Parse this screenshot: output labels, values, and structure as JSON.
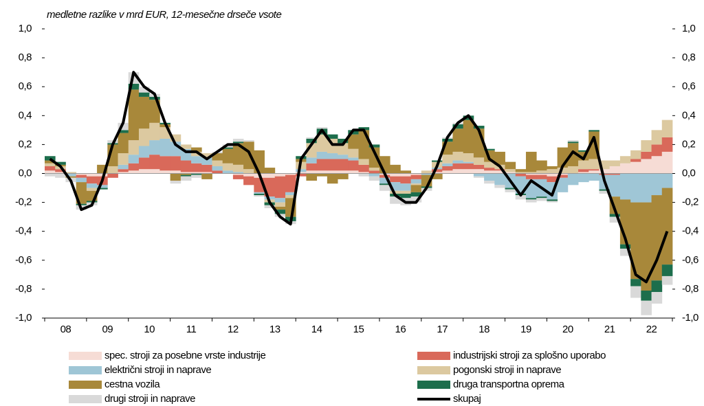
{
  "chart_data": {
    "type": "stacked_bar_line",
    "subtitle": "medletne razlike v mrd EUR, 12-mesečne drseče vsote",
    "categories": [
      null,
      "08",
      null,
      null,
      null,
      "09",
      null,
      null,
      null,
      "10",
      null,
      null,
      null,
      "11",
      null,
      null,
      null,
      "12",
      null,
      null,
      null,
      "13",
      null,
      null,
      null,
      "14",
      null,
      null,
      null,
      "15",
      null,
      null,
      null,
      "16",
      null,
      null,
      null,
      "17",
      null,
      null,
      null,
      "18",
      null,
      null,
      null,
      "19",
      null,
      null,
      null,
      "20",
      null,
      null,
      null,
      "21",
      null,
      null,
      null,
      "22",
      null,
      null
    ],
    "series": [
      {
        "name": "spec. stroji za posebne vrste industrije",
        "color": "#f6dcd5",
        "values": [
          0.02,
          0.01,
          0,
          -0.01,
          -0.02,
          -0.02,
          0,
          0.01,
          0.02,
          0.03,
          0.03,
          0.02,
          0.02,
          0.01,
          0.01,
          0.01,
          0,
          0,
          -0.01,
          -0.02,
          -0.03,
          -0.03,
          -0.02,
          -0.01,
          0.01,
          0.02,
          0.02,
          0.02,
          0.02,
          0.02,
          0.01,
          0,
          -0.01,
          -0.02,
          -0.02,
          -0.01,
          0,
          0.01,
          0.02,
          0.03,
          0.03,
          0.03,
          0.02,
          0.02,
          0.01,
          0,
          -0.01,
          -0.01,
          -0.02,
          -0.01,
          0,
          0.01,
          0.02,
          0.03,
          0.05,
          0.07,
          0.08,
          0.1,
          0.12,
          0.15
        ]
      },
      {
        "name": "industrijski stroji za splošno uporabo",
        "color": "#d9695a",
        "values": [
          0.03,
          0.02,
          0,
          -0.02,
          -0.05,
          -0.06,
          -0.03,
          0.02,
          0.05,
          0.08,
          0.1,
          0.1,
          0.1,
          0.08,
          0.06,
          0.05,
          0.02,
          0,
          -0.03,
          -0.06,
          -0.1,
          -0.13,
          -0.15,
          -0.12,
          -0.02,
          0.05,
          0.08,
          0.08,
          0.08,
          0.07,
          0.05,
          0.02,
          -0.02,
          -0.04,
          -0.05,
          -0.03,
          0,
          0.02,
          0.03,
          0.04,
          0.04,
          0.03,
          0.02,
          0.01,
          0,
          -0.02,
          -0.03,
          -0.03,
          -0.04,
          -0.02,
          0,
          0.02,
          0.01,
          -0.01,
          -0.01,
          0,
          0.02,
          0.05,
          0.08,
          0.1
        ]
      },
      {
        "name": "električni stroji in naprave",
        "color": "#9fc6d6",
        "values": [
          0,
          0,
          -0.02,
          -0.03,
          -0.03,
          -0.02,
          0,
          0.03,
          0.06,
          0.08,
          0.1,
          0.12,
          0.1,
          0.08,
          0.05,
          0.05,
          0.03,
          0.02,
          0.01,
          0,
          -0.01,
          -0.02,
          -0.03,
          -0.02,
          0.02,
          0.04,
          0.05,
          0.04,
          0.03,
          0.02,
          0,
          -0.02,
          -0.04,
          -0.06,
          -0.05,
          -0.03,
          -0.01,
          0.01,
          0.02,
          0.02,
          0.01,
          -0.02,
          -0.05,
          -0.08,
          -0.1,
          -0.12,
          -0.13,
          -0.12,
          -0.12,
          -0.1,
          -0.08,
          -0.06,
          -0.05,
          -0.1,
          -0.15,
          -0.18,
          -0.2,
          -0.2,
          -0.15,
          -0.1
        ]
      },
      {
        "name": "pogonski stroji in naprave",
        "color": "#dcc9a0",
        "values": [
          0.02,
          0.02,
          0.01,
          0,
          -0.02,
          0,
          0.05,
          0.08,
          0.1,
          0.12,
          0.12,
          0.08,
          0.05,
          0.03,
          0.03,
          0.03,
          0.04,
          0.05,
          0.05,
          0.03,
          0,
          -0.02,
          -0.03,
          -0.02,
          0.05,
          0.1,
          0.12,
          0.1,
          0.08,
          0.06,
          0.04,
          0.02,
          0,
          -0.02,
          -0.02,
          -0.01,
          0.02,
          0.04,
          0.06,
          0.06,
          0.06,
          0.05,
          0.04,
          0.03,
          0.02,
          0.01,
          0.01,
          0.02,
          0.03,
          0.04,
          0.05,
          0.06,
          0.07,
          0.06,
          0.04,
          0.05,
          0.06,
          0.08,
          0.1,
          0.12
        ]
      },
      {
        "name": "cestna vozila",
        "color": "#a8883a",
        "values": [
          0.02,
          0.01,
          -0.01,
          -0.15,
          -0.07,
          0.06,
          0.15,
          0.14,
          0.35,
          0.22,
          0.16,
          0.02,
          -0.05,
          -0.01,
          0.03,
          -0.04,
          0.05,
          0.1,
          0.15,
          0.19,
          0.16,
          0.04,
          -0.02,
          -0.13,
          0.02,
          -0.05,
          -0.02,
          -0.07,
          -0.04,
          0.1,
          0.2,
          0.14,
          0.12,
          0.06,
          0.02,
          -0.05,
          -0.08,
          -0.04,
          0.09,
          0.16,
          0.23,
          0.2,
          0.08,
          0.09,
          0.05,
          0.02,
          0.14,
          0.07,
          0.02,
          0.14,
          0.16,
          0.06,
          0.19,
          0,
          -0.12,
          -0.31,
          -0.53,
          -0.61,
          -0.59,
          -0.53
        ]
      },
      {
        "name": "druga transportna oprema",
        "color": "#1d6e4c",
        "values": [
          0.03,
          0.02,
          0,
          -0.01,
          -0.01,
          -0.01,
          0.01,
          0.02,
          0.04,
          0.03,
          0.02,
          0.01,
          0,
          -0.01,
          -0.01,
          0,
          0,
          0.01,
          0.01,
          0,
          -0.01,
          -0.02,
          -0.03,
          -0.03,
          0.02,
          0.03,
          0.04,
          0.03,
          0.03,
          0.03,
          0.02,
          0.02,
          -0.01,
          -0.02,
          -0.03,
          -0.03,
          -0.01,
          0.01,
          0.02,
          0.03,
          0.03,
          0.02,
          0.01,
          0,
          -0.01,
          -0.01,
          -0.01,
          -0.01,
          -0.01,
          0,
          0.01,
          0.01,
          0.01,
          -0.01,
          -0.02,
          -0.03,
          -0.05,
          -0.07,
          -0.08,
          -0.08
        ]
      },
      {
        "name": "drugi stroji in naprave",
        "color": "#d9d9d9",
        "values": [
          -0.02,
          -0.03,
          -0.03,
          -0.03,
          -0.02,
          0,
          0.02,
          0.05,
          0.08,
          0.04,
          0.02,
          0,
          -0.02,
          -0.03,
          -0.02,
          0,
          0.01,
          0.02,
          0.02,
          0.01,
          -0.01,
          -0.02,
          -0.02,
          -0.02,
          0,
          0.01,
          0.01,
          0,
          0,
          0,
          -0.02,
          -0.03,
          -0.04,
          -0.05,
          -0.05,
          -0.04,
          -0.02,
          0,
          0.01,
          0.01,
          0,
          -0.01,
          -0.02,
          -0.02,
          -0.02,
          -0.03,
          -0.02,
          -0.02,
          -0.01,
          0,
          0.01,
          0,
          0,
          -0.02,
          -0.04,
          -0.05,
          -0.08,
          -0.1,
          -0.08,
          -0.06
        ]
      },
      {
        "name": "skupaj",
        "color": "#000000",
        "kind": "line",
        "values": [
          0.1,
          0.05,
          -0.05,
          -0.25,
          -0.22,
          -0.05,
          0.2,
          0.35,
          0.7,
          0.6,
          0.55,
          0.35,
          0.2,
          0.15,
          0.15,
          0.1,
          0.15,
          0.2,
          0.2,
          0.15,
          0,
          -0.2,
          -0.3,
          -0.35,
          0.1,
          0.2,
          0.3,
          0.2,
          0.2,
          0.3,
          0.3,
          0.15,
          0,
          -0.15,
          -0.2,
          -0.2,
          -0.1,
          0.05,
          0.25,
          0.35,
          0.4,
          0.3,
          0.1,
          0.05,
          -0.05,
          -0.15,
          -0.05,
          -0.1,
          -0.15,
          0.05,
          0.15,
          0.1,
          0.25,
          -0.05,
          -0.25,
          -0.45,
          -0.7,
          -0.75,
          -0.6,
          -0.4
        ]
      }
    ],
    "ylim": [
      -1,
      1
    ],
    "yticks": [
      {
        "value": -1,
        "label": "-1,0"
      },
      {
        "value": -0.8,
        "label": "-0,8"
      },
      {
        "value": -0.6,
        "label": "-0,6"
      },
      {
        "value": -0.4,
        "label": "-0,4"
      },
      {
        "value": -0.2,
        "label": "-0,2"
      },
      {
        "value": 0,
        "label": "0,0"
      },
      {
        "value": 0.2,
        "label": "0,2"
      },
      {
        "value": 0.4,
        "label": "0,4"
      },
      {
        "value": 0.6,
        "label": "0,6"
      },
      {
        "value": 0.8,
        "label": "0,8"
      },
      {
        "value": 1,
        "label": "1,0"
      }
    ],
    "y2lim": [
      -1,
      1
    ],
    "y2ticks": [
      {
        "value": -1,
        "label": "-1,0"
      },
      {
        "value": -0.8,
        "label": "-0,8"
      },
      {
        "value": -0.6,
        "label": "-0,6"
      },
      {
        "value": -0.4,
        "label": "-0,4"
      },
      {
        "value": -0.2,
        "label": "-0,2"
      },
      {
        "value": 0,
        "label": "0,0"
      },
      {
        "value": 0.2,
        "label": "0,2"
      },
      {
        "value": 0.4,
        "label": "0,4"
      },
      {
        "value": 0.6,
        "label": "0,6"
      },
      {
        "value": 0.8,
        "label": "0,8"
      },
      {
        "value": 1,
        "label": "1,0"
      }
    ]
  }
}
